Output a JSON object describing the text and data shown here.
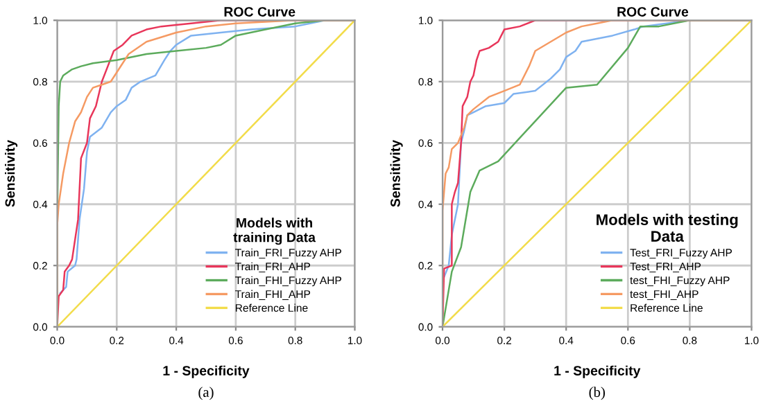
{
  "chart_data": [
    {
      "type": "line",
      "title": "ROC Curve",
      "xlabel": "1 - Specificity",
      "ylabel": "Sensitivity",
      "legend_title": "Models with\ntraining Data",
      "legend": "bottom right",
      "grid": true,
      "marker": "none",
      "line_style": "solid",
      "xlim": [
        0,
        1
      ],
      "ylim": [
        0,
        1
      ],
      "xticks": [
        {
          "value": 0,
          "label": "0.0"
        },
        {
          "value": 0.2,
          "label": "0.2"
        },
        {
          "value": 0.4,
          "label": "0.4"
        },
        {
          "value": 0.6,
          "label": "0.6"
        },
        {
          "value": 0.8,
          "label": "0.8"
        },
        {
          "value": 1,
          "label": "1.0"
        }
      ],
      "yticks": [
        {
          "value": 0,
          "label": "0.0"
        },
        {
          "value": 0.2,
          "label": "0.2"
        },
        {
          "value": 0.4,
          "label": "0.4"
        },
        {
          "value": 0.6,
          "label": "0.6"
        },
        {
          "value": 0.8,
          "label": "0.8"
        },
        {
          "value": 1,
          "label": "1.0"
        }
      ],
      "annotations": [
        "(a)"
      ],
      "series": [
        {
          "name": "Train_FRI_Fuzzy AHP",
          "color": "#7fb2f0",
          "x": [
            0.01,
            0.03,
            0.035,
            0.06,
            0.065,
            0.075,
            0.09,
            0.1,
            0.11,
            0.15,
            0.18,
            0.2,
            0.23,
            0.25,
            0.28,
            0.33,
            0.36,
            0.38,
            0.4,
            0.45,
            0.55,
            0.65,
            0.8,
            0.85,
            0.9,
            1
          ],
          "values": [
            0.11,
            0.13,
            0.18,
            0.2,
            0.22,
            0.35,
            0.45,
            0.57,
            0.62,
            0.65,
            0.7,
            0.72,
            0.74,
            0.78,
            0.8,
            0.82,
            0.87,
            0.9,
            0.92,
            0.95,
            0.96,
            0.97,
            0.98,
            0.99,
            1,
            1
          ]
        },
        {
          "name": "Train_FRI_AHP",
          "color": "#e8365a",
          "x": [
            0,
            0.005,
            0.02,
            0.025,
            0.04,
            0.05,
            0.07,
            0.08,
            0.1,
            0.11,
            0.13,
            0.15,
            0.17,
            0.19,
            0.22,
            0.25,
            0.3,
            0.35,
            0.45,
            0.55,
            1
          ],
          "values": [
            0,
            0.1,
            0.12,
            0.18,
            0.2,
            0.22,
            0.35,
            0.55,
            0.6,
            0.68,
            0.72,
            0.8,
            0.85,
            0.9,
            0.92,
            0.95,
            0.97,
            0.98,
            0.99,
            1,
            1
          ]
        },
        {
          "name": "Train_FHI_Fuzzy AHP",
          "color": "#5cab5c",
          "x": [
            0,
            0,
            0.005,
            0.01,
            0.02,
            0.05,
            0.08,
            0.12,
            0.2,
            0.3,
            0.4,
            0.5,
            0.55,
            0.6,
            0.7,
            0.8,
            0.9,
            1
          ],
          "values": [
            0,
            0.35,
            0.72,
            0.8,
            0.82,
            0.84,
            0.85,
            0.86,
            0.87,
            0.89,
            0.9,
            0.91,
            0.92,
            0.95,
            0.97,
            0.99,
            1,
            1
          ]
        },
        {
          "name": "Train_FHI_AHP",
          "color": "#f59a63",
          "x": [
            0,
            0,
            0.005,
            0.02,
            0.04,
            0.06,
            0.08,
            0.1,
            0.12,
            0.15,
            0.18,
            0.2,
            0.24,
            0.3,
            0.4,
            0.5,
            0.6,
            0.8,
            1
          ],
          "values": [
            0,
            0.33,
            0.4,
            0.5,
            0.6,
            0.67,
            0.7,
            0.75,
            0.78,
            0.79,
            0.8,
            0.83,
            0.89,
            0.93,
            0.96,
            0.98,
            0.99,
            1,
            1
          ]
        },
        {
          "name": "Reference Line",
          "color": "#f2dc4a",
          "x": [
            0,
            1
          ],
          "values": [
            0,
            1
          ]
        }
      ]
    },
    {
      "type": "line",
      "title": "ROC Curve",
      "xlabel": "1 - Specificity",
      "ylabel": "Sensitivity",
      "legend_title": "Models with testing\nData",
      "legend": "bottom right",
      "grid": true,
      "marker": "none",
      "line_style": "solid",
      "xlim": [
        0,
        1
      ],
      "ylim": [
        0,
        1
      ],
      "xticks": [
        {
          "value": 0,
          "label": "0.0"
        },
        {
          "value": 0.2,
          "label": "0.2"
        },
        {
          "value": 0.4,
          "label": "0.4"
        },
        {
          "value": 0.6,
          "label": "0.6"
        },
        {
          "value": 0.8,
          "label": "0.8"
        },
        {
          "value": 1,
          "label": "1.0"
        }
      ],
      "yticks": [
        {
          "value": 0,
          "label": "0.0"
        },
        {
          "value": 0.2,
          "label": "0.2"
        },
        {
          "value": 0.4,
          "label": "0.4"
        },
        {
          "value": 0.6,
          "label": "0.6"
        },
        {
          "value": 0.8,
          "label": "0.8"
        },
        {
          "value": 1,
          "label": "1.0"
        }
      ],
      "annotations": [
        "(b)"
      ],
      "series": [
        {
          "name": "Test_FRI_Fuzzy AHP",
          "color": "#7fb2f0",
          "x": [
            0,
            0,
            0.02,
            0.03,
            0.05,
            0.06,
            0.07,
            0.08,
            0.1,
            0.14,
            0.2,
            0.23,
            0.3,
            0.35,
            0.38,
            0.4,
            0.43,
            0.45,
            0.55,
            0.62,
            0.65,
            0.8,
            1
          ],
          "values": [
            0,
            0.15,
            0.2,
            0.3,
            0.4,
            0.6,
            0.64,
            0.69,
            0.7,
            0.72,
            0.73,
            0.76,
            0.77,
            0.81,
            0.84,
            0.88,
            0.9,
            0.93,
            0.95,
            0.97,
            0.98,
            1,
            1
          ]
        },
        {
          "name": "Test_FRI_AHP",
          "color": "#e8365a",
          "x": [
            0,
            0.005,
            0.03,
            0.03,
            0.04,
            0.05,
            0.06,
            0.065,
            0.08,
            0.09,
            0.1,
            0.11,
            0.12,
            0.15,
            0.18,
            0.2,
            0.25,
            0.3,
            1
          ],
          "values": [
            0,
            0.19,
            0.2,
            0.4,
            0.44,
            0.47,
            0.6,
            0.72,
            0.75,
            0.8,
            0.82,
            0.87,
            0.9,
            0.91,
            0.93,
            0.97,
            0.98,
            1,
            1
          ]
        },
        {
          "name": "test_FHI_Fuzzy AHP",
          "color": "#5cab5c",
          "x": [
            0,
            0.03,
            0.06,
            0.09,
            0.12,
            0.18,
            0.4,
            0.5,
            0.6,
            0.64,
            0.7,
            0.8,
            1
          ],
          "values": [
            0,
            0.18,
            0.26,
            0.44,
            0.51,
            0.54,
            0.78,
            0.79,
            0.91,
            0.98,
            0.98,
            1,
            1
          ]
        },
        {
          "name": "test_FHI_AHP",
          "color": "#f59a63",
          "x": [
            0,
            0,
            0.01,
            0.02,
            0.03,
            0.05,
            0.07,
            0.08,
            0.1,
            0.15,
            0.2,
            0.25,
            0.28,
            0.3,
            0.35,
            0.4,
            0.45,
            0.5,
            0.55,
            1
          ],
          "values": [
            0,
            0.38,
            0.5,
            0.52,
            0.58,
            0.6,
            0.65,
            0.69,
            0.71,
            0.75,
            0.77,
            0.79,
            0.85,
            0.9,
            0.93,
            0.96,
            0.98,
            0.99,
            1,
            1
          ]
        },
        {
          "name": "Reference Line",
          "color": "#f2dc4a",
          "x": [
            0,
            1
          ],
          "values": [
            0,
            1
          ]
        }
      ]
    }
  ]
}
